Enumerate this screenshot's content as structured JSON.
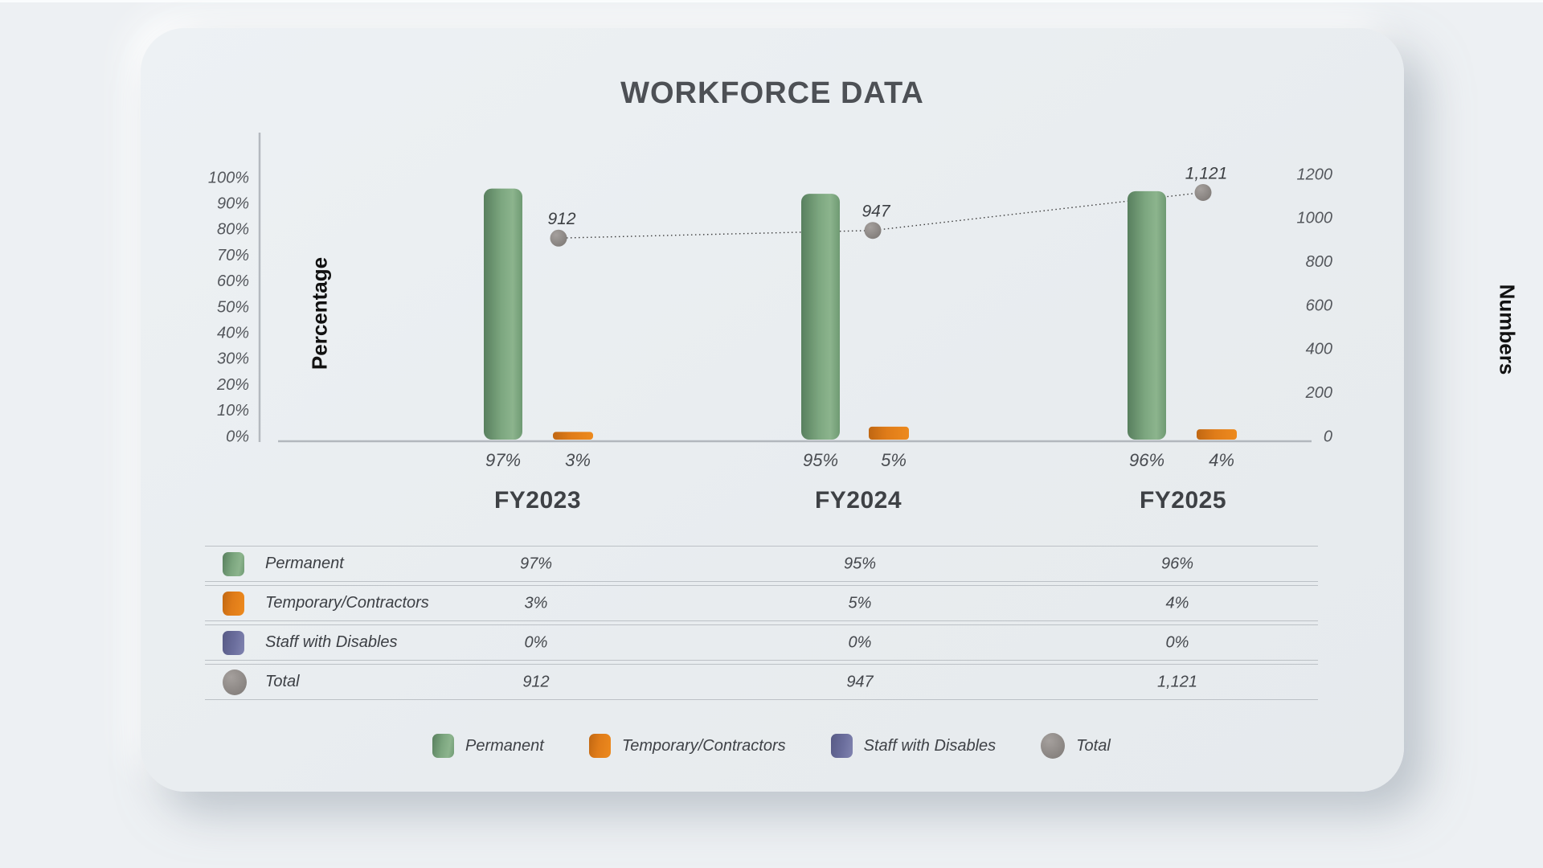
{
  "title": "WORKFORCE DATA",
  "chart_data": {
    "type": "bar",
    "title": "WORKFORCE DATA",
    "categories": [
      "FY2023",
      "FY2024",
      "FY2025"
    ],
    "series": [
      {
        "name": "Permanent",
        "type": "bar",
        "axis": "left",
        "values": [
          97,
          95,
          96
        ],
        "value_labels": [
          "97%",
          "95%",
          "96%"
        ],
        "color": "#74a077"
      },
      {
        "name": "Temporary/Contractors",
        "type": "bar",
        "axis": "left",
        "values": [
          3,
          5,
          4
        ],
        "value_labels": [
          "3%",
          "5%",
          "4%"
        ],
        "color": "#e07c19"
      },
      {
        "name": "Staff with Disables",
        "type": "bar",
        "axis": "left",
        "values": [
          0,
          0,
          0
        ],
        "value_labels": [
          "0%",
          "0%",
          "0%"
        ],
        "color": "#6b6e9d"
      },
      {
        "name": "Total",
        "type": "line",
        "axis": "right",
        "values": [
          912,
          947,
          1121
        ],
        "value_labels": [
          "912",
          "947",
          "1,121"
        ],
        "color": "#8e8986"
      }
    ],
    "left_axis": {
      "label": "Percentage",
      "min": 0,
      "max": 100,
      "ticks": [
        "0%",
        "10%",
        "20%",
        "30%",
        "40%",
        "50%",
        "60%",
        "70%",
        "80%",
        "90%",
        "100%"
      ]
    },
    "right_axis": {
      "label": "Numbers",
      "min": 0,
      "max": 1200,
      "ticks": [
        0,
        200,
        400,
        600,
        800,
        1000,
        1200
      ]
    },
    "grid": false,
    "legend_position": "bottom"
  },
  "table": {
    "rows": [
      {
        "label": "Permanent",
        "swatch": "green-rounded-square",
        "values": [
          "97%",
          "95%",
          "96%"
        ]
      },
      {
        "label": "Temporary/Contractors",
        "swatch": "orange-rounded-square",
        "values": [
          "3%",
          "5%",
          "4%"
        ]
      },
      {
        "label": "Staff with Disables",
        "swatch": "purple-rounded-square",
        "values": [
          "0%",
          "0%",
          "0%"
        ]
      },
      {
        "label": "Total",
        "swatch": "gray-circle",
        "values": [
          "912",
          "947",
          "1,121"
        ]
      }
    ]
  },
  "legend": {
    "items": [
      {
        "label": "Permanent",
        "swatch": "green-rounded-square"
      },
      {
        "label": "Temporary/Contractors",
        "swatch": "orange-rounded-square"
      },
      {
        "label": "Staff with Disables",
        "swatch": "purple-rounded-square"
      },
      {
        "label": "Total",
        "swatch": "gray-circle"
      }
    ]
  },
  "colors": {
    "background": "#edf0f3",
    "card": "#e9edf0",
    "permanent_green": "#74a077",
    "temporary_orange": "#e07c19",
    "disables_purple": "#6b6e9d",
    "total_gray": "#8e8986",
    "axis_line": "#b4b9bf",
    "text_dark": "#3e4145"
  }
}
